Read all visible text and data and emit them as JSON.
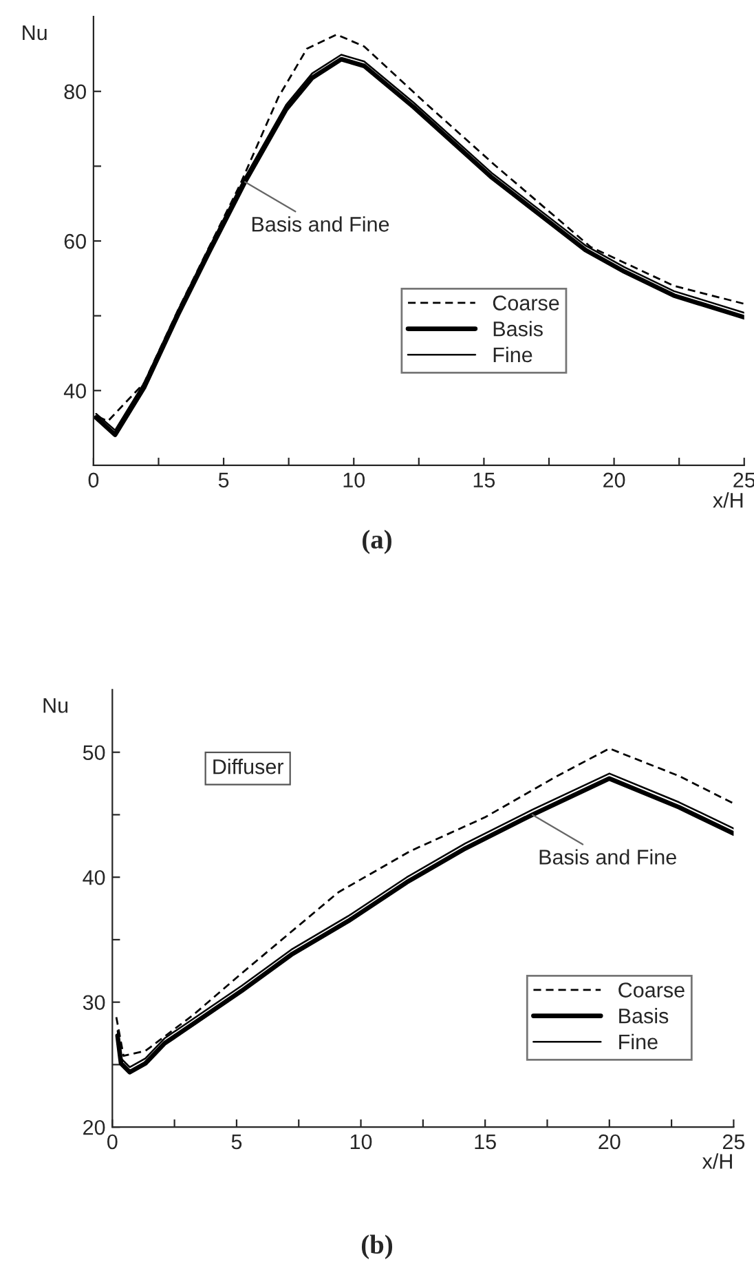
{
  "chart_data": [
    {
      "type": "line",
      "xlabel": "x/H",
      "ylabel": "Nu",
      "xlim": [
        0,
        25
      ],
      "ylim": [
        30,
        90
      ],
      "xticks": [
        0,
        {
          "value": 2.5,
          "label": null
        },
        5,
        {
          "value": 7.5,
          "label": null
        },
        10,
        {
          "value": 12.5,
          "label": null
        },
        15,
        {
          "value": 17.5,
          "label": null
        },
        20,
        {
          "value": 22.5,
          "label": null
        },
        25
      ],
      "yticks": [
        40,
        {
          "value": 50,
          "label": null
        },
        60,
        {
          "value": 70,
          "label": null
        },
        80
      ],
      "grid": false,
      "legend": "lower center",
      "series": [
        {
          "name": "Coarse",
          "color": "#000000",
          "line_style": "dashed",
          "x": [
            0.18,
            0.55,
            1.94,
            3.24,
            4.53,
            5.64,
            7.1,
            8.2,
            9.34,
            10.4,
            12.7,
            15.4,
            19.1,
            22.3,
            25
          ],
          "values": [
            36.5,
            35.9,
            41.0,
            50.7,
            59.8,
            67.6,
            79.2,
            85.7,
            87.6,
            86.0,
            78.6,
            70.2,
            59.2,
            54.0,
            51.6
          ]
        },
        {
          "name": "Basis",
          "color": "#000000",
          "line_style": "solid",
          "x": [
            0.1,
            0.83,
            1.94,
            3.24,
            4.44,
            5.82,
            7.4,
            8.4,
            9.52,
            10.4,
            12.3,
            15.3,
            18.9,
            20.4,
            22.3,
            25
          ],
          "values": [
            36.4,
            34.1,
            40.4,
            50.1,
            58.5,
            67.9,
            77.6,
            81.8,
            84.3,
            83.4,
            77.9,
            68.5,
            58.8,
            55.9,
            52.7,
            49.8
          ]
        },
        {
          "name": "Fine",
          "color": "#000000",
          "line_style": "solid",
          "x": [
            0.1,
            0.83,
            1.94,
            3.24,
            4.44,
            5.82,
            7.4,
            8.4,
            9.52,
            10.4,
            12.3,
            15.3,
            18.9,
            20.4,
            22.3,
            25
          ],
          "values": [
            36.9,
            34.7,
            41.0,
            50.7,
            59.1,
            68.5,
            78.2,
            82.4,
            84.9,
            84.0,
            78.5,
            69.1,
            59.4,
            56.5,
            53.3,
            50.4
          ]
        }
      ],
      "annotations": [
        {
          "text": "Basis and Fine",
          "x": 5.82,
          "y": 67.9
        },
        "(a)"
      ]
    },
    {
      "type": "line",
      "xlabel": "x/H",
      "ylabel": "Nu",
      "xlim": [
        0,
        25
      ],
      "ylim": [
        20,
        55
      ],
      "xticks": [
        0,
        {
          "value": 2.5,
          "label": null
        },
        5,
        {
          "value": 7.5,
          "label": null
        },
        10,
        {
          "value": 12.5,
          "label": null
        },
        15,
        {
          "value": 17.5,
          "label": null
        },
        20,
        {
          "value": 22.5,
          "label": null
        },
        25
      ],
      "yticks": [
        20,
        {
          "value": 25,
          "label": null
        },
        30,
        {
          "value": 35,
          "label": null
        },
        40,
        {
          "value": 45,
          "label": null
        },
        50
      ],
      "grid": false,
      "legend": "lower right",
      "series": [
        {
          "name": "Coarse",
          "color": "#000000",
          "line_style": "dashed",
          "x": [
            0.16,
            0.45,
            1.33,
            3.27,
            5.2,
            9.1,
            12.0,
            15.0,
            17.9,
            20.0,
            22.8,
            25
          ],
          "values": [
            28.8,
            25.7,
            26.1,
            29.0,
            32.3,
            38.8,
            42.1,
            44.8,
            48.1,
            50.3,
            48.1,
            45.9
          ]
        },
        {
          "name": "Basis",
          "color": "#000000",
          "line_style": "solid",
          "x": [
            0.21,
            0.35,
            0.7,
            1.33,
            2.1,
            5.2,
            7.2,
            9.5,
            11.85,
            14.2,
            16.9,
            20.0,
            22.8,
            25
          ],
          "values": [
            27.3,
            25.1,
            24.4,
            25.1,
            26.7,
            30.9,
            33.8,
            36.5,
            39.6,
            42.3,
            45.0,
            47.9,
            45.6,
            43.5
          ]
        },
        {
          "name": "Fine",
          "color": "#000000",
          "line_style": "solid",
          "x": [
            0.21,
            0.35,
            0.7,
            1.33,
            2.1,
            5.2,
            7.2,
            9.5,
            11.85,
            14.2,
            16.9,
            20.0,
            22.8,
            25
          ],
          "values": [
            27.7,
            25.5,
            24.8,
            25.5,
            27.1,
            31.3,
            34.2,
            36.9,
            40.0,
            42.7,
            45.4,
            48.3,
            46.0,
            43.9
          ]
        }
      ],
      "annotations": [
        "Diffuser",
        {
          "text": "Basis and Fine",
          "x": 16.9,
          "y": 45.0
        },
        "(b)"
      ]
    }
  ]
}
